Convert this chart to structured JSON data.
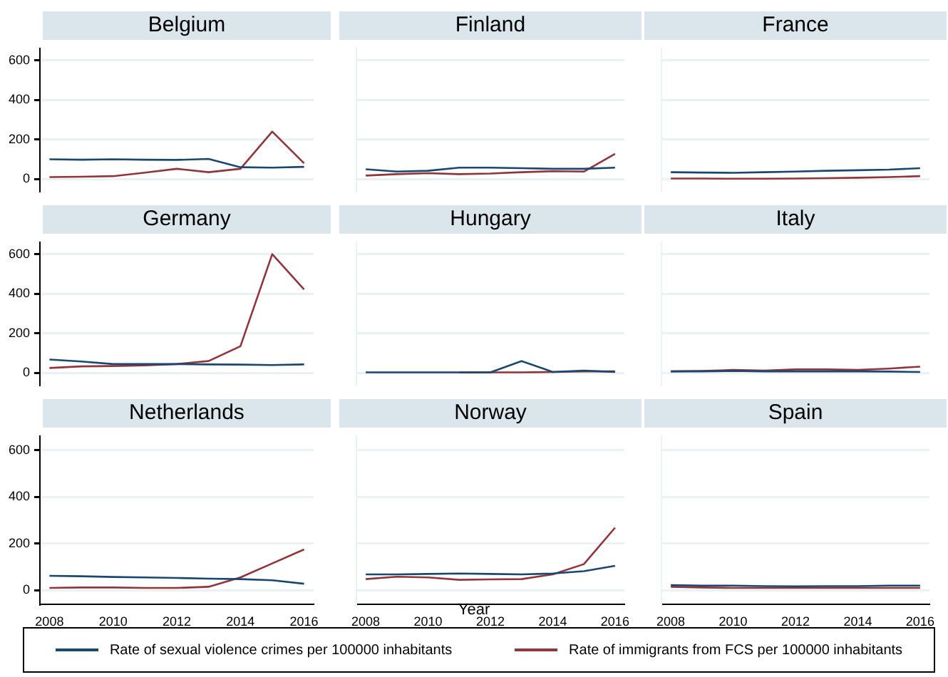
{
  "chart_data": [
    {
      "type": "line",
      "title": "Belgium",
      "x": [
        2008,
        2009,
        2010,
        2011,
        2012,
        2013,
        2014,
        2015,
        2016
      ],
      "xlim": [
        2007.7,
        2016.3
      ],
      "xticks": [
        2008,
        2010,
        2012,
        2014,
        2016
      ],
      "ylim": [
        -60,
        660
      ],
      "yticks": [
        0,
        200,
        400,
        600
      ],
      "grid": "y",
      "tick_labels": "y",
      "series": [
        {
          "color": "#1a476f",
          "values": [
            100,
            98,
            100,
            98,
            97,
            102,
            60,
            58,
            62
          ]
        },
        {
          "color": "#90353b",
          "values": [
            10,
            12,
            15,
            33,
            52,
            35,
            52,
            240,
            80
          ]
        }
      ]
    },
    {
      "type": "line",
      "title": "Finland",
      "x": [
        2008,
        2009,
        2010,
        2011,
        2012,
        2013,
        2014,
        2015,
        2016
      ],
      "xlim": [
        2007.7,
        2016.3
      ],
      "xticks": [
        2008,
        2010,
        2012,
        2014,
        2016
      ],
      "ylim": [
        -60,
        660
      ],
      "yticks": [
        0,
        200,
        400,
        600
      ],
      "grid": "y",
      "tick_labels": false,
      "series": [
        {
          "color": "#1a476f",
          "values": [
            50,
            38,
            42,
            58,
            58,
            55,
            52,
            52,
            58
          ]
        },
        {
          "color": "#90353b",
          "values": [
            18,
            25,
            30,
            25,
            28,
            35,
            40,
            38,
            128
          ]
        }
      ]
    },
    {
      "type": "line",
      "title": "France",
      "x": [
        2008,
        2009,
        2010,
        2011,
        2012,
        2013,
        2014,
        2015,
        2016
      ],
      "xlim": [
        2007.7,
        2016.3
      ],
      "xticks": [
        2008,
        2010,
        2012,
        2014,
        2016
      ],
      "ylim": [
        -60,
        660
      ],
      "yticks": [
        0,
        200,
        400,
        600
      ],
      "grid": "y",
      "tick_labels": false,
      "series": [
        {
          "color": "#1a476f",
          "values": [
            35,
            33,
            32,
            35,
            38,
            42,
            45,
            48,
            55
          ]
        },
        {
          "color": "#90353b",
          "values": [
            3,
            3,
            2,
            2,
            3,
            5,
            7,
            10,
            15
          ]
        }
      ]
    },
    {
      "type": "line",
      "title": "Germany",
      "x": [
        2008,
        2009,
        2010,
        2011,
        2012,
        2013,
        2014,
        2015,
        2016
      ],
      "xlim": [
        2007.7,
        2016.3
      ],
      "xticks": [
        2008,
        2010,
        2012,
        2014,
        2016
      ],
      "ylim": [
        -60,
        660
      ],
      "yticks": [
        0,
        200,
        400,
        600
      ],
      "grid": "y",
      "tick_labels": "y",
      "series": [
        {
          "color": "#1a476f",
          "values": [
            68,
            58,
            45,
            45,
            45,
            43,
            42,
            40,
            43
          ]
        },
        {
          "color": "#90353b",
          "values": [
            25,
            33,
            35,
            38,
            45,
            60,
            135,
            600,
            422
          ]
        }
      ]
    },
    {
      "type": "line",
      "title": "Hungary",
      "x": [
        2008,
        2009,
        2010,
        2011,
        2012,
        2013,
        2014,
        2015,
        2016
      ],
      "xlim": [
        2007.7,
        2016.3
      ],
      "xticks": [
        2008,
        2010,
        2012,
        2014,
        2016
      ],
      "ylim": [
        -60,
        660
      ],
      "yticks": [
        0,
        200,
        400,
        600
      ],
      "grid": "y",
      "tick_labels": false,
      "series": [
        {
          "color": "#1a476f",
          "values": [
            3,
            3,
            3,
            3,
            3,
            60,
            5,
            12,
            5
          ]
        },
        {
          "color": "#90353b",
          "values": [
            null,
            null,
            null,
            2,
            3,
            3,
            5,
            8,
            8
          ]
        }
      ]
    },
    {
      "type": "line",
      "title": "Italy",
      "x": [
        2008,
        2009,
        2010,
        2011,
        2012,
        2013,
        2014,
        2015,
        2016
      ],
      "xlim": [
        2007.7,
        2016.3
      ],
      "xticks": [
        2008,
        2010,
        2012,
        2014,
        2016
      ],
      "ylim": [
        -60,
        660
      ],
      "yticks": [
        0,
        200,
        400,
        600
      ],
      "grid": "y",
      "tick_labels": false,
      "series": [
        {
          "color": "#1a476f",
          "values": [
            8,
            8,
            10,
            8,
            8,
            8,
            8,
            7,
            5
          ]
        },
        {
          "color": "#90353b",
          "values": [
            8,
            10,
            15,
            12,
            18,
            18,
            15,
            22,
            32
          ]
        }
      ]
    },
    {
      "type": "line",
      "title": "Netherlands",
      "x": [
        2008,
        2009,
        2010,
        2011,
        2012,
        2013,
        2014,
        2015,
        2016
      ],
      "xlim": [
        2007.7,
        2016.3
      ],
      "xticks": [
        2008,
        2010,
        2012,
        2014,
        2016
      ],
      "ylim": [
        -60,
        660
      ],
      "yticks": [
        0,
        200,
        400,
        600
      ],
      "grid": "y",
      "series": [
        {
          "color": "#1a476f",
          "values": [
            62,
            60,
            57,
            55,
            53,
            50,
            48,
            43,
            28
          ]
        },
        {
          "color": "#90353b",
          "values": [
            10,
            12,
            12,
            10,
            10,
            15,
            55,
            115,
            175
          ]
        }
      ]
    },
    {
      "type": "line",
      "title": "Norway",
      "xlabel": "Year",
      "x": [
        2008,
        2009,
        2010,
        2011,
        2012,
        2013,
        2014,
        2015,
        2016
      ],
      "xlim": [
        2007.7,
        2016.3
      ],
      "xticks": [
        2008,
        2010,
        2012,
        2014,
        2016
      ],
      "ylim": [
        -60,
        660
      ],
      "yticks": [
        0,
        200,
        400,
        600
      ],
      "grid": "y",
      "tick_labels": "x",
      "legend": "bottom",
      "series": [
        {
          "name": "Rate of sexual violence crimes per 100000 inhabitants",
          "color": "#1a476f",
          "values": [
            68,
            68,
            70,
            72,
            70,
            68,
            72,
            82,
            105
          ]
        },
        {
          "name": "Rate of immigrants from FCS per 100000 inhabitants",
          "color": "#90353b",
          "values": [
            48,
            58,
            55,
            45,
            47,
            48,
            68,
            112,
            268
          ]
        }
      ]
    },
    {
      "type": "line",
      "title": "Spain",
      "x": [
        2008,
        2009,
        2010,
        2011,
        2012,
        2013,
        2014,
        2015,
        2016
      ],
      "xlim": [
        2007.7,
        2016.3
      ],
      "xticks": [
        2008,
        2010,
        2012,
        2014,
        2016
      ],
      "ylim": [
        -60,
        660
      ],
      "yticks": [
        0,
        200,
        400,
        600
      ],
      "grid": "y",
      "tick_labels": "x",
      "series": [
        {
          "color": "#1a476f",
          "values": [
            22,
            20,
            20,
            18,
            17,
            18,
            18,
            20,
            20
          ]
        },
        {
          "color": "#90353b",
          "values": [
            15,
            12,
            10,
            10,
            10,
            10,
            10,
            10,
            10
          ]
        }
      ]
    }
  ]
}
